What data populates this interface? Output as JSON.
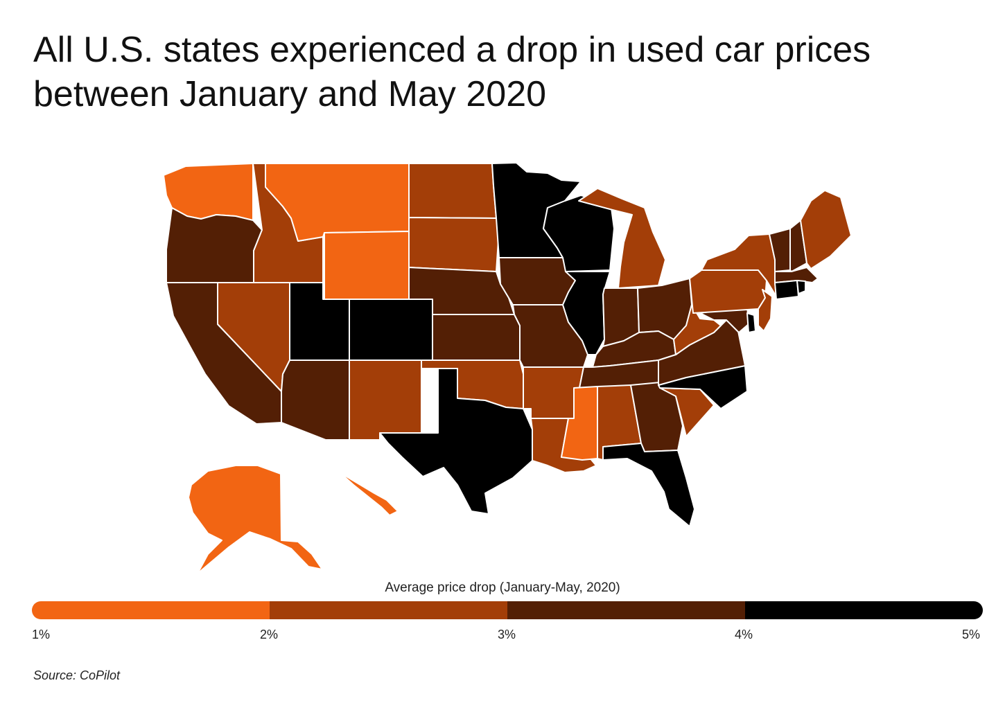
{
  "title": "All U.S. states experienced a drop in used car prices between January and May 2020",
  "legend": {
    "title": "Average price drop (January-May, 2020)",
    "bins": [
      {
        "from": 1,
        "to": 2,
        "color": "#f26513"
      },
      {
        "from": 2,
        "to": 3,
        "color": "#a33e08"
      },
      {
        "from": 3,
        "to": 4,
        "color": "#531f05"
      },
      {
        "from": 4,
        "to": 5,
        "color": "#000000"
      }
    ],
    "ticks": [
      "1%",
      "2%",
      "3%",
      "4%",
      "5%"
    ]
  },
  "source": "Source:  CoPilot",
  "states": [
    {
      "name": "WA",
      "bin": 1
    },
    {
      "name": "OR",
      "bin": 3
    },
    {
      "name": "CA",
      "bin": 3
    },
    {
      "name": "ID",
      "bin": 2
    },
    {
      "name": "NV",
      "bin": 2
    },
    {
      "name": "MT",
      "bin": 1
    },
    {
      "name": "WY",
      "bin": 1
    },
    {
      "name": "UT",
      "bin": 4
    },
    {
      "name": "AZ",
      "bin": 3
    },
    {
      "name": "CO",
      "bin": 4
    },
    {
      "name": "NM",
      "bin": 2
    },
    {
      "name": "ND",
      "bin": 2
    },
    {
      "name": "SD",
      "bin": 2
    },
    {
      "name": "NE",
      "bin": 3
    },
    {
      "name": "KS",
      "bin": 3
    },
    {
      "name": "OK",
      "bin": 2
    },
    {
      "name": "TX",
      "bin": 4
    },
    {
      "name": "MN",
      "bin": 4
    },
    {
      "name": "IA",
      "bin": 3
    },
    {
      "name": "MO",
      "bin": 3
    },
    {
      "name": "AR",
      "bin": 2
    },
    {
      "name": "LA",
      "bin": 2
    },
    {
      "name": "WI",
      "bin": 4
    },
    {
      "name": "IL",
      "bin": 4
    },
    {
      "name": "MI",
      "bin": 2
    },
    {
      "name": "IN",
      "bin": 3
    },
    {
      "name": "OH",
      "bin": 3
    },
    {
      "name": "KY",
      "bin": 3
    },
    {
      "name": "TN",
      "bin": 3
    },
    {
      "name": "MS",
      "bin": 1
    },
    {
      "name": "AL",
      "bin": 2
    },
    {
      "name": "GA",
      "bin": 3
    },
    {
      "name": "FL",
      "bin": 4
    },
    {
      "name": "SC",
      "bin": 2
    },
    {
      "name": "NC",
      "bin": 4
    },
    {
      "name": "VA",
      "bin": 3
    },
    {
      "name": "WV",
      "bin": 2
    },
    {
      "name": "MD",
      "bin": 3
    },
    {
      "name": "DE",
      "bin": 4
    },
    {
      "name": "PA",
      "bin": 2
    },
    {
      "name": "NJ",
      "bin": 2
    },
    {
      "name": "NY",
      "bin": 2
    },
    {
      "name": "CT",
      "bin": 4
    },
    {
      "name": "RI",
      "bin": 4
    },
    {
      "name": "MA",
      "bin": 3
    },
    {
      "name": "VT",
      "bin": 3
    },
    {
      "name": "NH",
      "bin": 3
    },
    {
      "name": "ME",
      "bin": 2
    },
    {
      "name": "AK",
      "bin": 1
    },
    {
      "name": "HI",
      "bin": 1
    }
  ]
}
